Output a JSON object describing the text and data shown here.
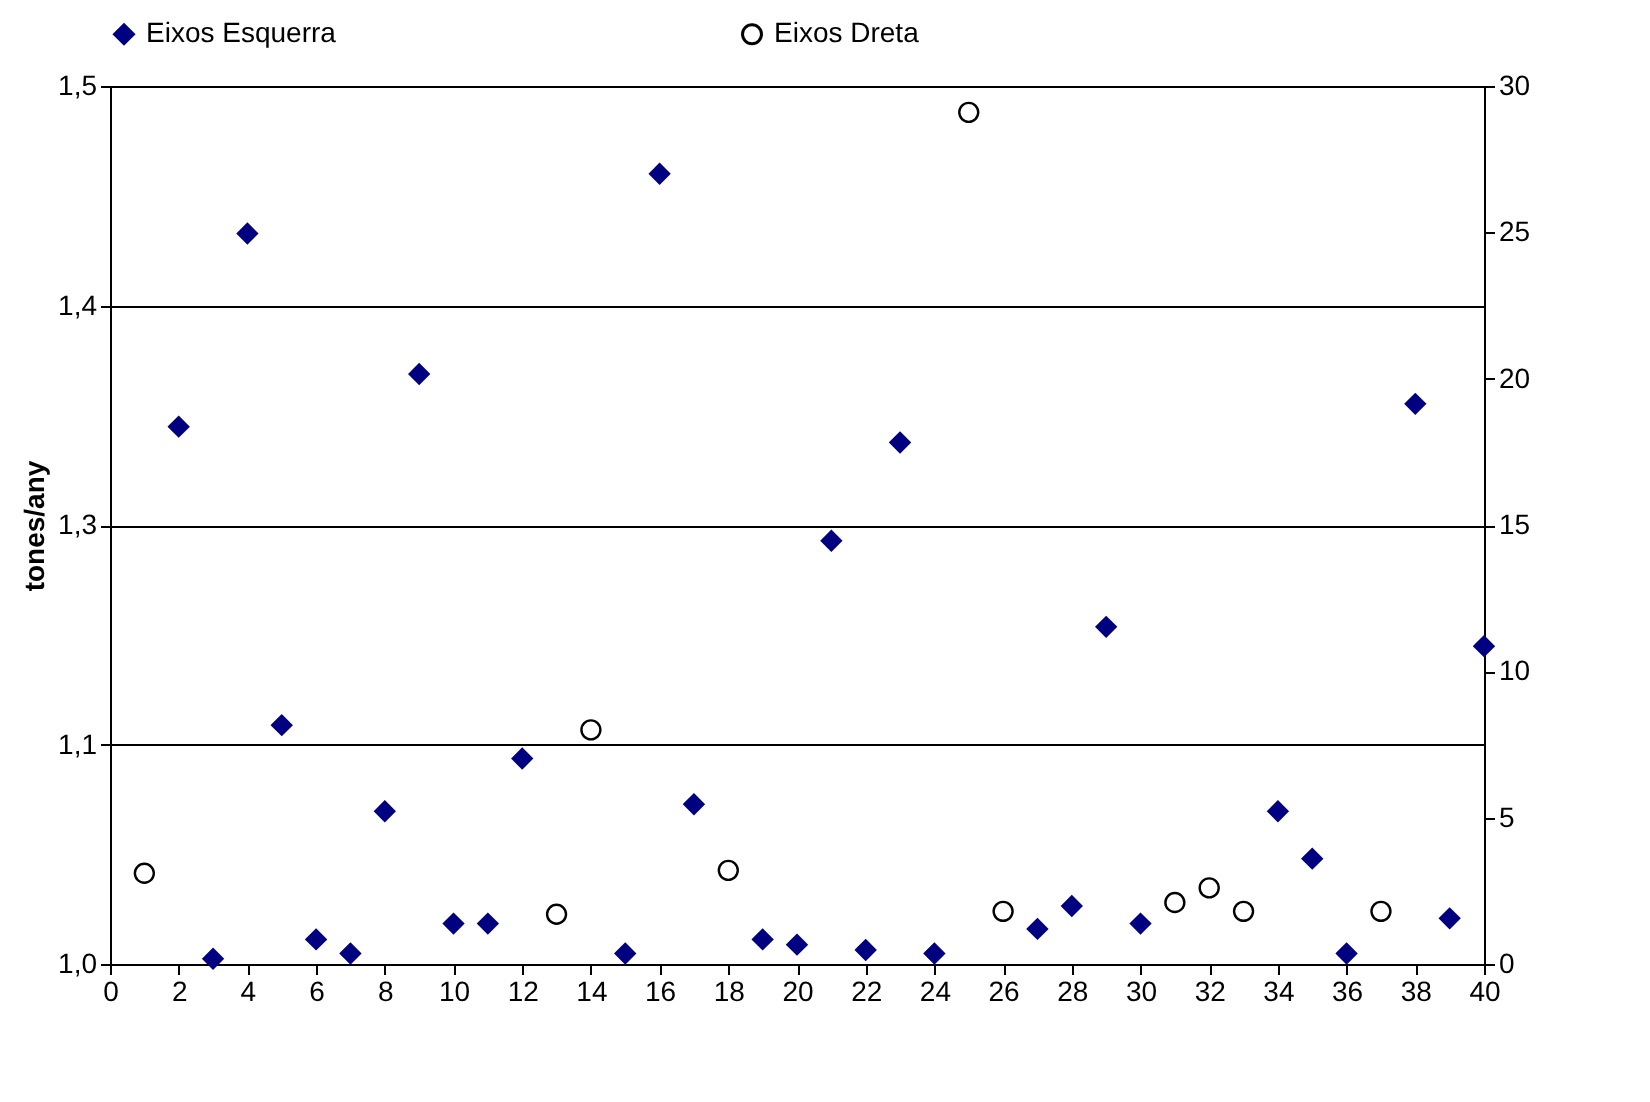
{
  "chart_data": {
    "type": "scatter",
    "ylabel": "tones/any",
    "legend": "top",
    "grid": "y",
    "xlim": [
      0,
      40
    ],
    "xticks": [
      0,
      2,
      4,
      6,
      8,
      10,
      12,
      14,
      16,
      18,
      20,
      22,
      24,
      26,
      28,
      30,
      32,
      34,
      36,
      38,
      40
    ],
    "ylim": [
      1.0,
      1.5
    ],
    "yticks": [
      {
        "value": 1.0,
        "label": "1,0"
      },
      {
        "value": 1.125,
        "label": "1,1"
      },
      {
        "value": 1.25,
        "label": "1,3"
      },
      {
        "value": 1.375,
        "label": "1,4"
      },
      {
        "value": 1.5,
        "label": "1,5"
      }
    ],
    "y2lim": [
      0,
      30
    ],
    "y2ticks": [
      0,
      5,
      10,
      15,
      20,
      25,
      30
    ],
    "series": [
      {
        "name": "Eixos Esquerra",
        "color": "#000080",
        "marker": "diamond",
        "x": [
          2,
          3,
          4,
          5,
          6,
          7,
          8,
          9,
          10,
          11,
          12,
          15,
          16,
          17,
          19,
          20,
          21,
          22,
          23,
          24,
          27,
          28,
          29,
          30,
          34,
          35,
          36,
          38,
          39,
          40
        ],
        "values": [
          1.306,
          1.003,
          1.416,
          1.136,
          1.014,
          1.006,
          1.087,
          1.336,
          1.023,
          1.023,
          1.117,
          1.006,
          1.45,
          1.091,
          1.014,
          1.011,
          1.241,
          1.008,
          1.297,
          1.006,
          1.02,
          1.033,
          1.192,
          1.023,
          1.087,
          1.06,
          1.006,
          1.319,
          1.026,
          1.181
        ]
      },
      {
        "name": "Eixos Dreta",
        "color": "#000000",
        "marker": "circle",
        "axis": "y2",
        "x": [
          1,
          13,
          14,
          18,
          25,
          26,
          31,
          32,
          33,
          37
        ],
        "values": [
          3.1,
          1.7,
          8.0,
          3.2,
          29.1,
          1.8,
          2.1,
          2.6,
          1.8,
          1.8
        ]
      }
    ]
  }
}
